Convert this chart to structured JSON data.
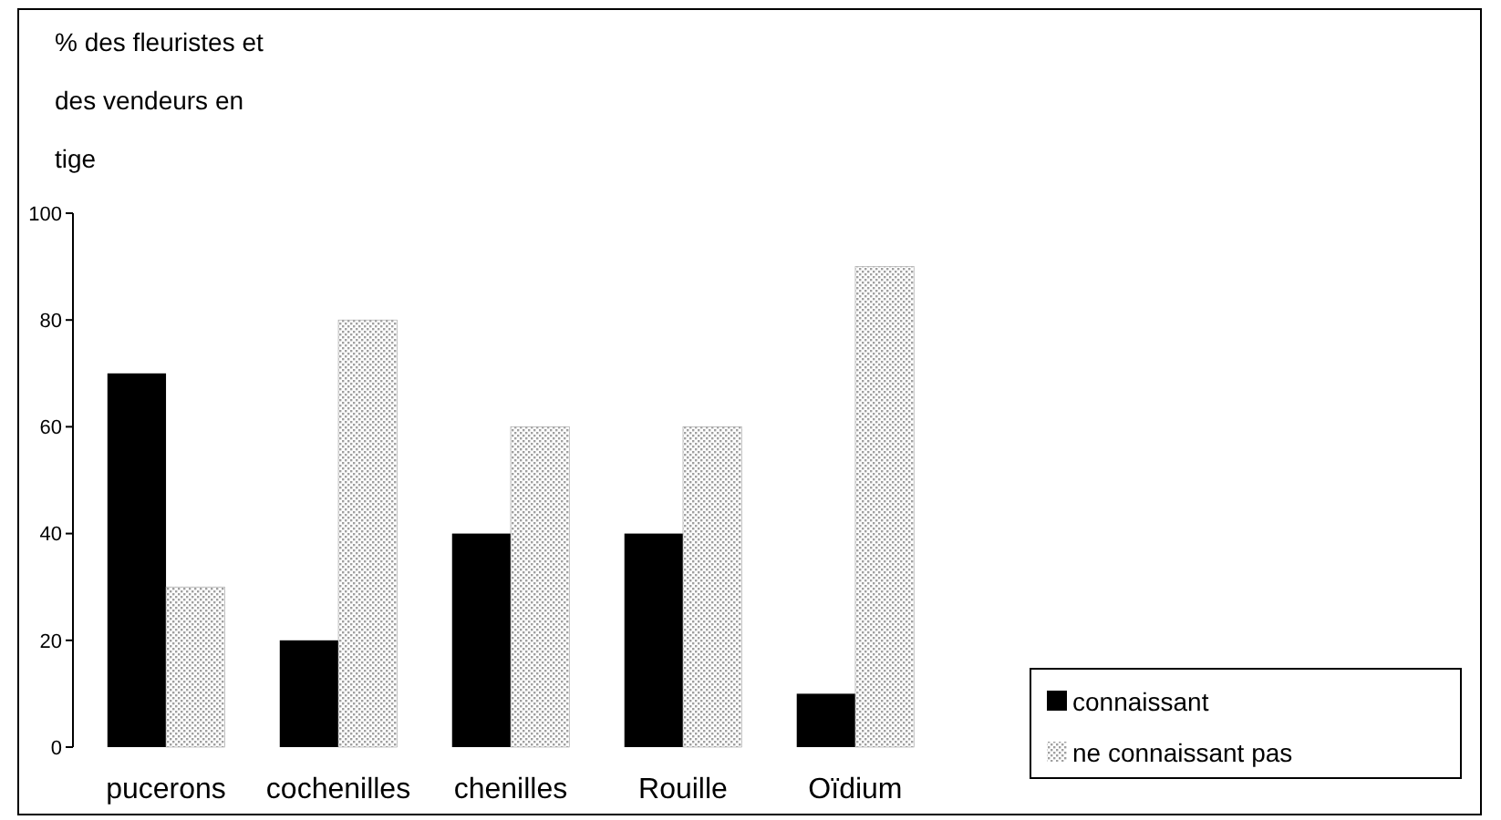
{
  "chart_data": {
    "type": "bar",
    "ylabel": "% des fleuristes et des vendeurs en tige",
    "categories": [
      "pucerons",
      "cochenilles",
      "chenilles",
      "Rouille",
      "Oïdium"
    ],
    "series": [
      {
        "name": "connaissant",
        "color": "#000000",
        "values": [
          70,
          20,
          40,
          40,
          10
        ]
      },
      {
        "name": "ne connaissant pas",
        "color": "#a0a0a0",
        "values": [
          30,
          80,
          60,
          60,
          90
        ]
      }
    ],
    "ylim": [
      0,
      100
    ],
    "yticks": [
      0,
      20,
      40,
      60,
      80,
      100
    ],
    "grid": false,
    "legend": "right"
  }
}
